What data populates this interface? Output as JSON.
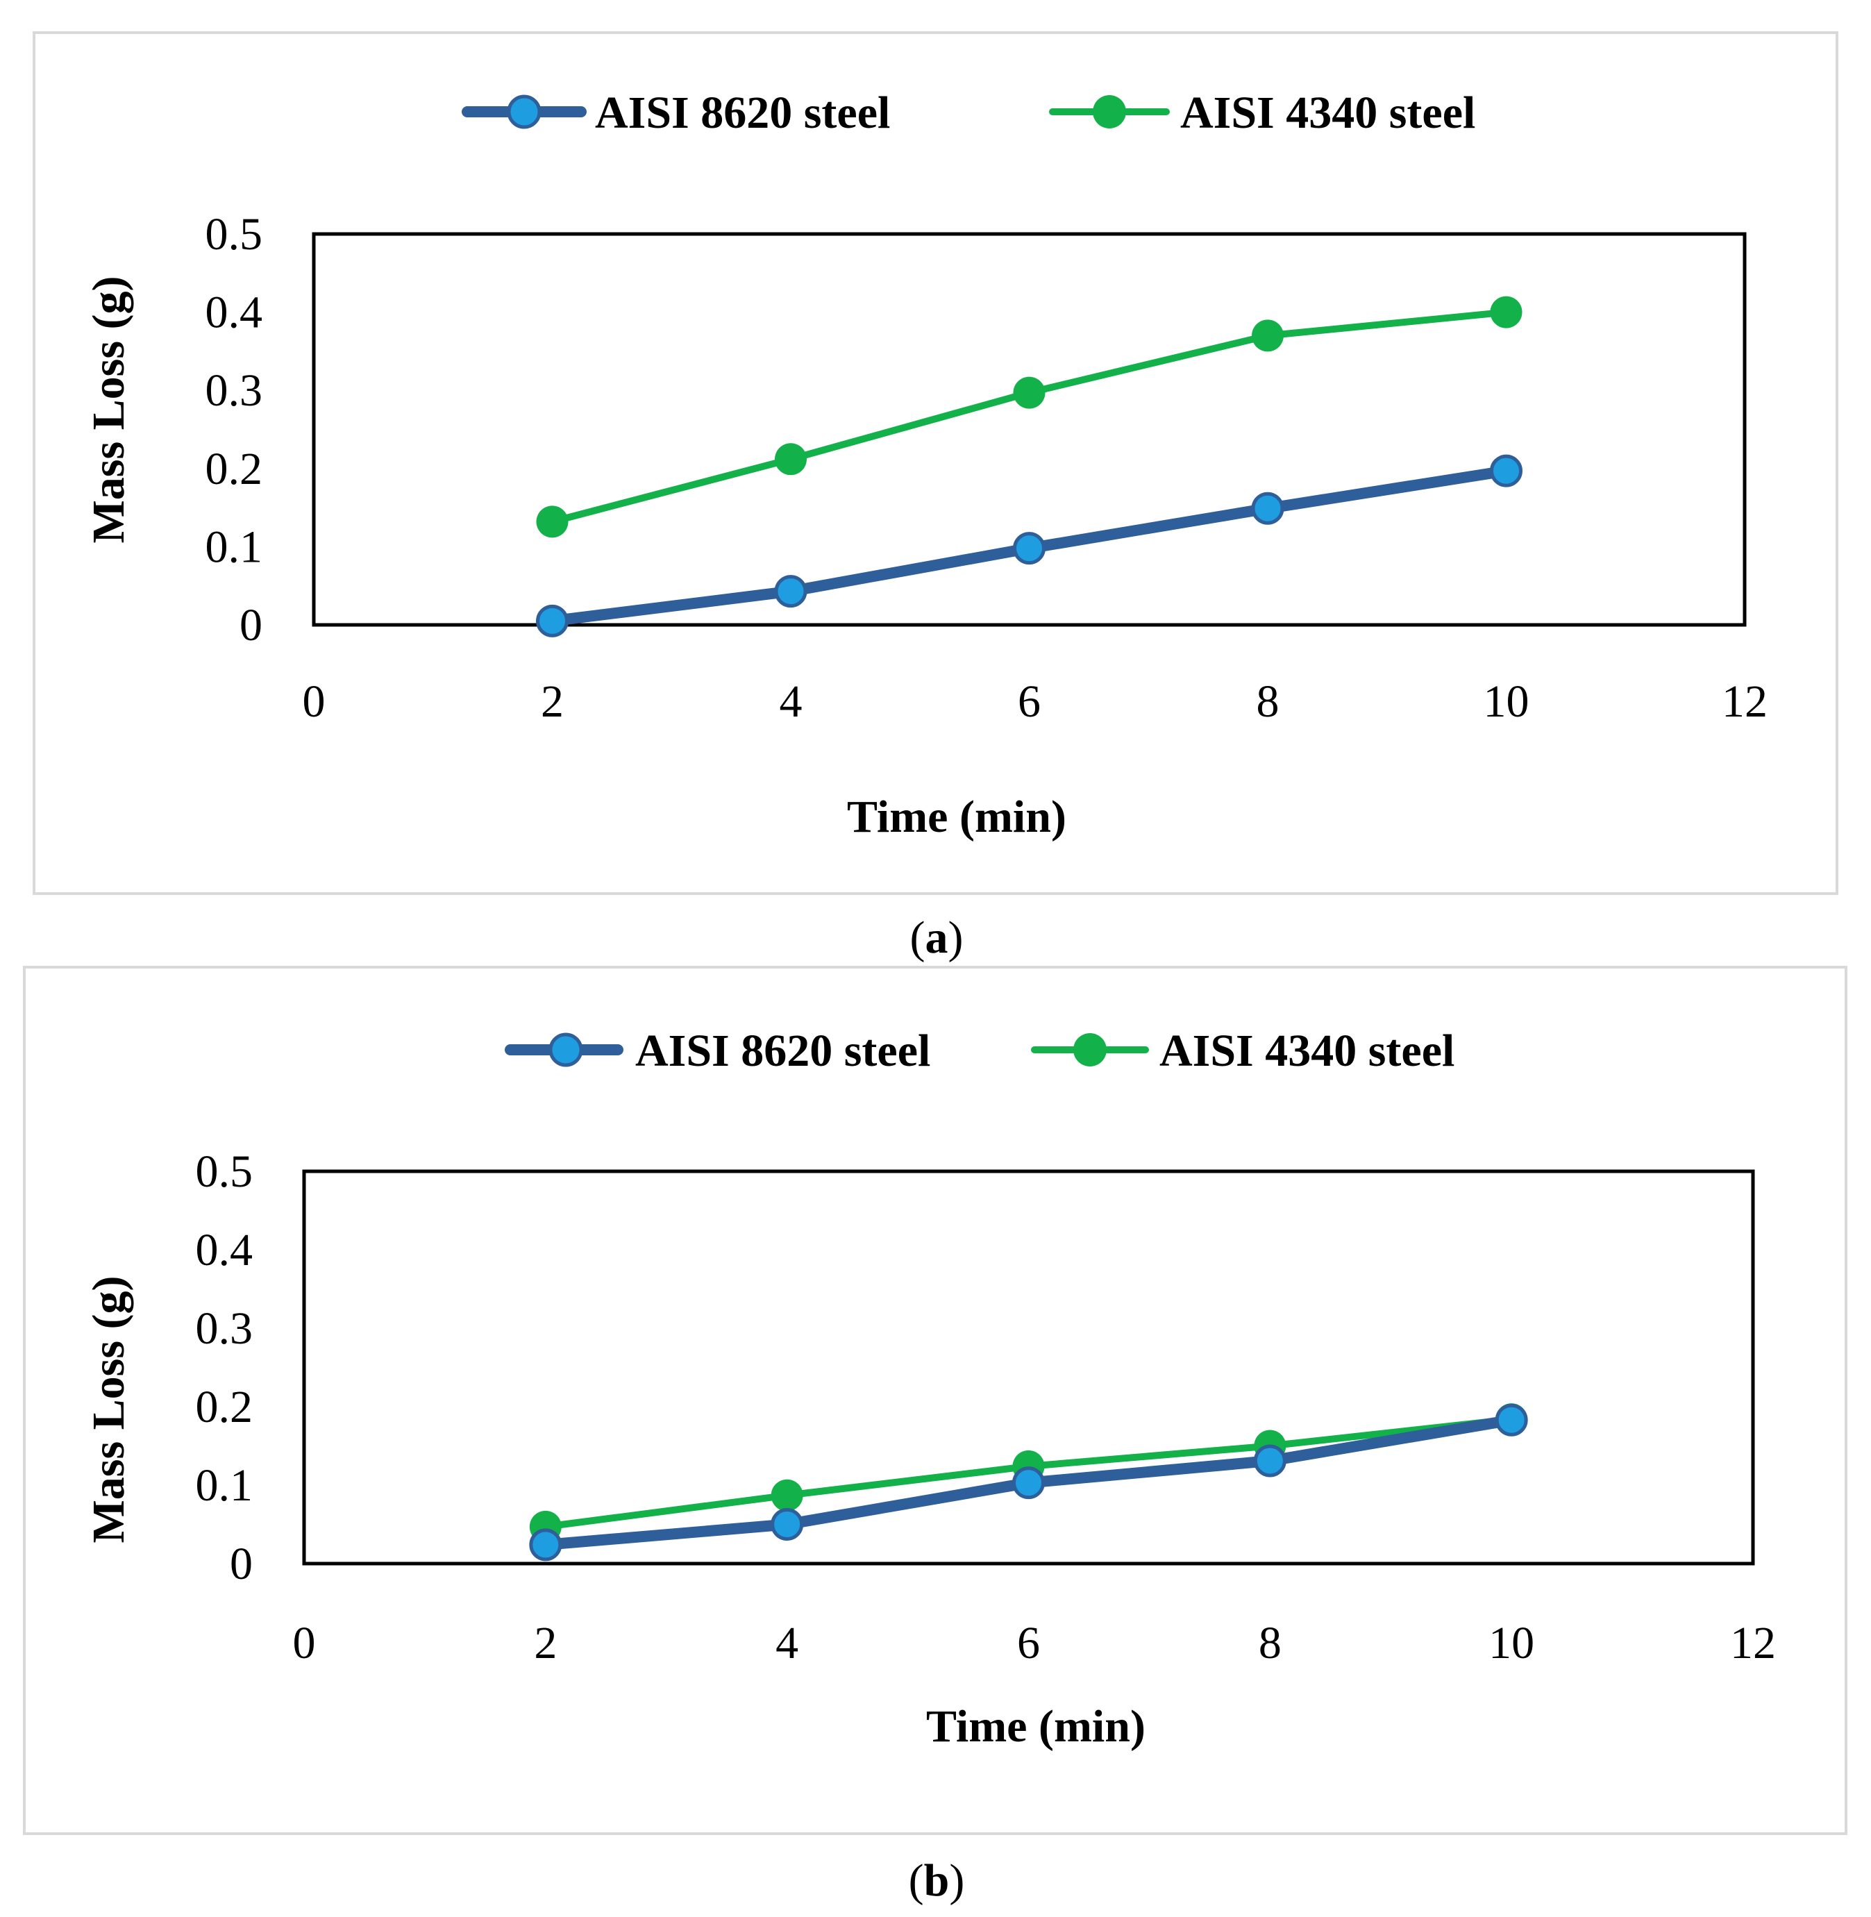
{
  "colors": {
    "series_8620_line": "#2e5f9a",
    "series_8620_marker": "#1e9ee0",
    "series_4340": "#12b14a",
    "frame": "#d9d9d9"
  },
  "chart_data": [
    {
      "type": "line",
      "caption_open": "(",
      "caption_letter": "a",
      "caption_close": ")",
      "xlabel": "Time (min)",
      "ylabel": "Mass Loss (g)",
      "xlim": [
        0,
        12
      ],
      "ylim": [
        0,
        0.5
      ],
      "xticks": [
        0,
        2,
        4,
        6,
        8,
        10,
        12
      ],
      "yticks": [
        0,
        0.1,
        0.2,
        0.3,
        0.4,
        0.5
      ],
      "legend_position": "top",
      "series": [
        {
          "name": "AISI 8620 steel",
          "x": [
            2,
            4,
            6,
            8,
            10
          ],
          "values": [
            0.005,
            0.043,
            0.098,
            0.149,
            0.197
          ]
        },
        {
          "name": "AISI 4340 steel",
          "x": [
            2,
            4,
            6,
            8,
            10
          ],
          "values": [
            0.132,
            0.212,
            0.297,
            0.37,
            0.4
          ]
        }
      ]
    },
    {
      "type": "line",
      "caption_open": "(",
      "caption_letter": "b",
      "caption_close": ")",
      "xlabel": "Time (min)",
      "ylabel": "Mass Loss (g)",
      "xlim": [
        0,
        12
      ],
      "ylim": [
        0,
        0.5
      ],
      "xticks": [
        0,
        2,
        4,
        6,
        8,
        10,
        12
      ],
      "yticks": [
        0,
        0.1,
        0.2,
        0.3,
        0.4,
        0.5
      ],
      "legend_position": "top",
      "series": [
        {
          "name": "AISI 8620 steel",
          "x": [
            2,
            4,
            6,
            8,
            10
          ],
          "values": [
            0.024,
            0.05,
            0.103,
            0.131,
            0.183
          ]
        },
        {
          "name": "AISI 4340 steel",
          "x": [
            2,
            4,
            6,
            8,
            10
          ],
          "values": [
            0.047,
            0.087,
            0.124,
            0.15,
            0.184
          ]
        }
      ]
    }
  ]
}
